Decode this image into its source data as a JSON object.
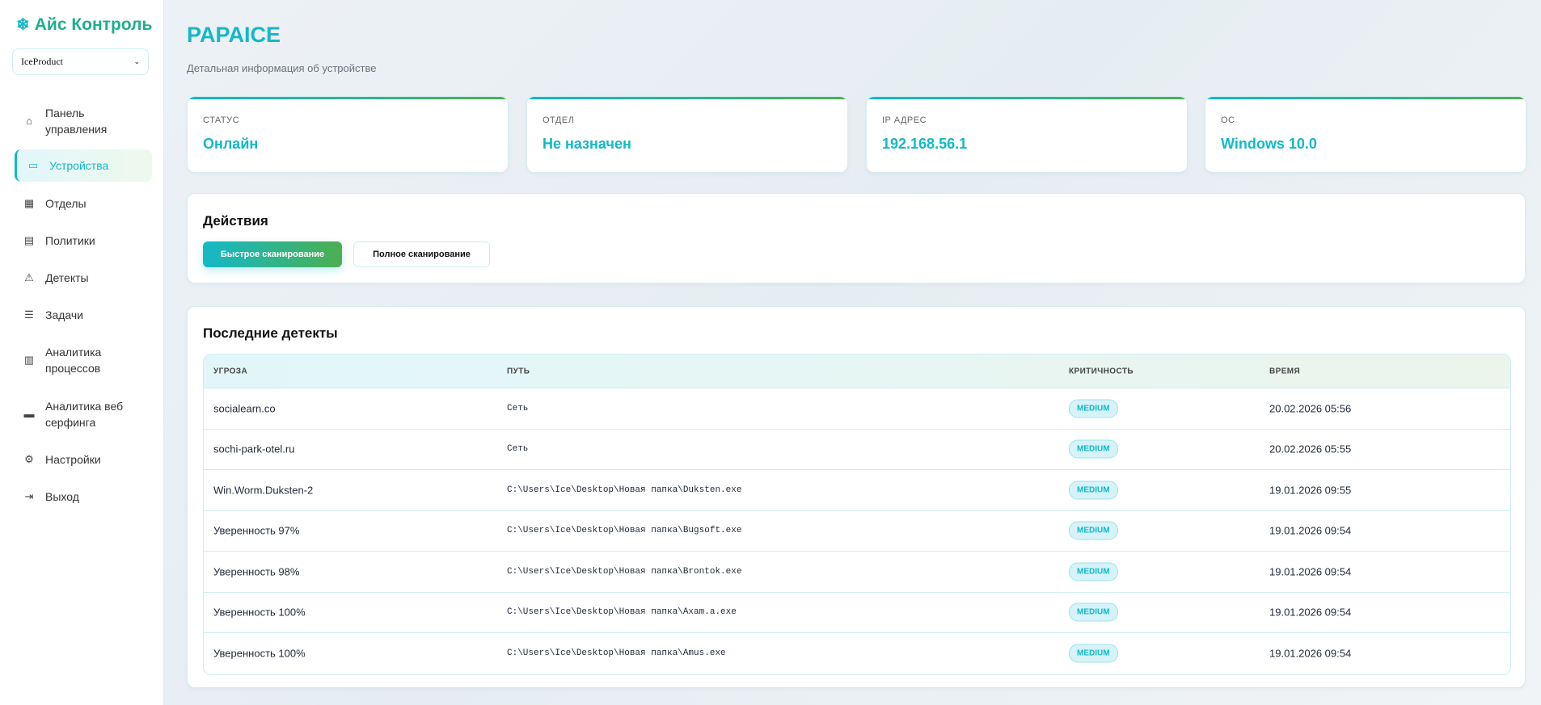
{
  "app": {
    "title": "Айс Контроль",
    "logo_icon": "snowflake-icon"
  },
  "org_select": {
    "value": "IceProduct"
  },
  "sidebar": {
    "items": [
      {
        "label": "Панель управления",
        "icon": "home-icon"
      },
      {
        "label": "Устройства",
        "icon": "monitor-icon",
        "active": true
      },
      {
        "label": "Отделы",
        "icon": "building-icon"
      },
      {
        "label": "Политики",
        "icon": "document-icon"
      },
      {
        "label": "Детекты",
        "icon": "warning-icon"
      },
      {
        "label": "Задачи",
        "icon": "clipboard-icon"
      },
      {
        "label": "Аналитика процессов",
        "icon": "bar-chart-icon"
      },
      {
        "label": "Аналитика веб серфинга",
        "icon": "web-icon"
      },
      {
        "label": "Настройки",
        "icon": "gear-icon"
      },
      {
        "label": "Выход",
        "icon": "logout-icon"
      }
    ]
  },
  "page": {
    "title": "PAPAICE",
    "subtitle": "Детальная информация об устройстве"
  },
  "stats": [
    {
      "label": "СТАТУС",
      "value": "Онлайн"
    },
    {
      "label": "ОТДЕЛ",
      "value": "Не назначен"
    },
    {
      "label": "IP АДРЕС",
      "value": "192.168.56.1"
    },
    {
      "label": "ОС",
      "value": "Windows 10.0"
    }
  ],
  "actions": {
    "title": "Действия",
    "quick_scan": "Быстрое сканирование",
    "full_scan": "Полное сканирование"
  },
  "detects": {
    "title": "Последние детекты",
    "columns": [
      "УГРОЗА",
      "ПУТЬ",
      "КРИТИЧНОСТЬ",
      "ВРЕМЯ"
    ],
    "rows": [
      [
        "socialearn.co",
        "Сеть",
        "MEDIUM",
        "20.02.2026 05:56"
      ],
      [
        "sochi-park-otel.ru",
        "Сеть",
        "MEDIUM",
        "20.02.2026 05:55"
      ],
      [
        "Win.Worm.Duksten-2",
        "C:\\Users\\Ice\\Desktop\\Новая папка\\Duksten.exe",
        "MEDIUM",
        "19.01.2026 09:55"
      ],
      [
        "Уверенность 97%",
        "C:\\Users\\Ice\\Desktop\\Новая папка\\Bugsoft.exe",
        "MEDIUM",
        "19.01.2026 09:54"
      ],
      [
        "Уверенность 98%",
        "C:\\Users\\Ice\\Desktop\\Новая папка\\Brontok.exe",
        "MEDIUM",
        "19.01.2026 09:54"
      ],
      [
        "Уверенность 100%",
        "C:\\Users\\Ice\\Desktop\\Новая папка\\Axam.a.exe",
        "MEDIUM",
        "19.01.2026 09:54"
      ],
      [
        "Уверенность 100%",
        "C:\\Users\\Ice\\Desktop\\Новая папка\\Amus.exe",
        "MEDIUM",
        "19.01.2026 09:54"
      ]
    ]
  },
  "colors": {
    "accent": "#14b8c8",
    "accent2": "#4caf50"
  }
}
